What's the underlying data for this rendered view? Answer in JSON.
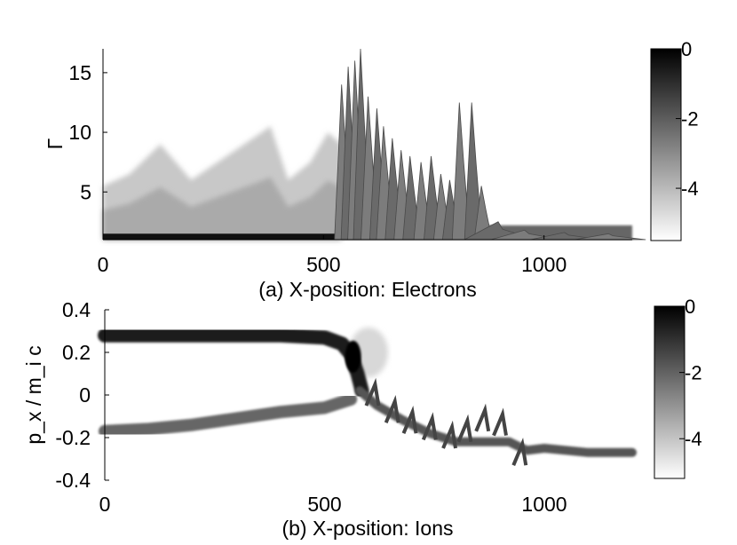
{
  "chart_data": [
    {
      "type": "heatmap",
      "xlabel": "(a) X-position: Electrons",
      "ylabel": "Γ",
      "xlim": [
        0,
        1200
      ],
      "ylim": [
        1,
        17
      ],
      "xticks": [
        "0",
        "500",
        "1000"
      ],
      "yticks": [
        "5",
        "10",
        "15"
      ],
      "colorbar": {
        "ticks": [
          "0",
          "-2",
          "-4"
        ],
        "range": [
          -5.5,
          0
        ],
        "cmap": "gray-reversed"
      },
      "peaks": [
        {
          "x": 545,
          "y": 14.0
        },
        {
          "x": 560,
          "y": 15.5
        },
        {
          "x": 575,
          "y": 16.0
        },
        {
          "x": 588,
          "y": 17.0
        },
        {
          "x": 605,
          "y": 13.0
        },
        {
          "x": 625,
          "y": 12.0
        },
        {
          "x": 640,
          "y": 10.5
        },
        {
          "x": 660,
          "y": 9.5
        },
        {
          "x": 680,
          "y": 8.5
        },
        {
          "x": 700,
          "y": 8.0
        },
        {
          "x": 725,
          "y": 7.5
        },
        {
          "x": 748,
          "y": 8.0
        },
        {
          "x": 770,
          "y": 6.5
        },
        {
          "x": 790,
          "y": 6.0
        },
        {
          "x": 812,
          "y": 12.5
        },
        {
          "x": 840,
          "y": 12.5
        },
        {
          "x": 862,
          "y": 5.5
        },
        {
          "x": 900,
          "y": 2.5
        },
        {
          "x": 960,
          "y": 1.8
        },
        {
          "x": 1050,
          "y": 1.6
        },
        {
          "x": 1150,
          "y": 1.5
        }
      ],
      "cloud": [
        {
          "x": 0,
          "y": 5.5
        },
        {
          "x": 60,
          "y": 6.5
        },
        {
          "x": 130,
          "y": 9.0
        },
        {
          "x": 200,
          "y": 6.0
        },
        {
          "x": 280,
          "y": 8.0
        },
        {
          "x": 340,
          "y": 9.5
        },
        {
          "x": 380,
          "y": 10.5
        },
        {
          "x": 420,
          "y": 6.0
        },
        {
          "x": 470,
          "y": 7.5
        },
        {
          "x": 510,
          "y": 10.0
        },
        {
          "x": 540,
          "y": 9.0
        }
      ]
    },
    {
      "type": "heatmap",
      "xlabel": "(b) X-position: Ions",
      "ylabel": "p_x / m_i c",
      "xlim": [
        0,
        1200
      ],
      "ylim": [
        -0.4,
        0.4
      ],
      "xticks": [
        "0",
        "500",
        "1000"
      ],
      "yticks": [
        "0.4",
        "0.2",
        "0",
        "-0.2",
        "-0.4"
      ],
      "colorbar": {
        "ticks": [
          "0",
          "-2",
          "-4"
        ],
        "range": [
          -5.2,
          0
        ],
        "cmap": "gray-reversed"
      },
      "upper_beam": [
        {
          "x": 0,
          "y": 0.28
        },
        {
          "x": 200,
          "y": 0.28
        },
        {
          "x": 400,
          "y": 0.28
        },
        {
          "x": 500,
          "y": 0.27
        },
        {
          "x": 540,
          "y": 0.24
        },
        {
          "x": 560,
          "y": 0.19
        },
        {
          "x": 575,
          "y": 0.1
        },
        {
          "x": 585,
          "y": 0.02
        }
      ],
      "lower_beam": [
        {
          "x": 0,
          "y": -0.17
        },
        {
          "x": 100,
          "y": -0.16
        },
        {
          "x": 200,
          "y": -0.14
        },
        {
          "x": 300,
          "y": -0.11
        },
        {
          "x": 400,
          "y": -0.08
        },
        {
          "x": 500,
          "y": -0.06
        },
        {
          "x": 560,
          "y": -0.02
        }
      ],
      "downstream": [
        {
          "x": 580,
          "y": 0.02
        },
        {
          "x": 620,
          "y": -0.05
        },
        {
          "x": 680,
          "y": -0.12
        },
        {
          "x": 740,
          "y": -0.18
        },
        {
          "x": 800,
          "y": -0.22
        },
        {
          "x": 860,
          "y": -0.22
        },
        {
          "x": 920,
          "y": -0.22
        },
        {
          "x": 960,
          "y": -0.26
        },
        {
          "x": 1000,
          "y": -0.25
        },
        {
          "x": 1100,
          "y": -0.27
        },
        {
          "x": 1200,
          "y": -0.27
        }
      ],
      "osc_peaks": [
        {
          "x": 615,
          "y": 0.05
        },
        {
          "x": 660,
          "y": -0.03
        },
        {
          "x": 700,
          "y": -0.08
        },
        {
          "x": 745,
          "y": -0.11
        },
        {
          "x": 790,
          "y": -0.15
        },
        {
          "x": 825,
          "y": -0.12
        },
        {
          "x": 865,
          "y": -0.07
        },
        {
          "x": 905,
          "y": -0.09
        },
        {
          "x": 950,
          "y": -0.23
        }
      ]
    }
  ]
}
